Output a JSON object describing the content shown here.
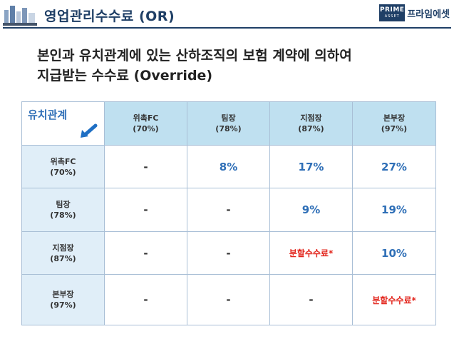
{
  "header": {
    "title": "영업관리수수료 (OR)",
    "brand_box_top": "PRIME",
    "brand_box_bottom": "ASSET",
    "brand_name": "프라임에셋",
    "accent_color": "#1f3f66"
  },
  "subtitle": {
    "line1": "본인과 유치관계에 있는 산하조직의 보험 계약에 의하여",
    "line2": "지급받는 수수료 (Override)"
  },
  "table": {
    "corner_label": "유치관계",
    "columns": [
      {
        "name": "위촉FC",
        "pct": "(70%)"
      },
      {
        "name": "팀장",
        "pct": "(78%)"
      },
      {
        "name": "지점장",
        "pct": "(87%)"
      },
      {
        "name": "본부장",
        "pct": "(97%)"
      }
    ],
    "rows": [
      {
        "name": "위촉FC",
        "pct": "(70%)",
        "cells": [
          "-",
          "8%",
          "17%",
          "27%"
        ]
      },
      {
        "name": "팀장",
        "pct": "(78%)",
        "cells": [
          "-",
          "-",
          "9%",
          "19%"
        ]
      },
      {
        "name": "지점장",
        "pct": "(87%)",
        "cells": [
          "-",
          "-",
          "분할수수료*",
          "10%"
        ]
      },
      {
        "name": "본부장",
        "pct": "(97%)",
        "cells": [
          "-",
          "-",
          "-",
          "분할수수료*"
        ]
      }
    ]
  }
}
